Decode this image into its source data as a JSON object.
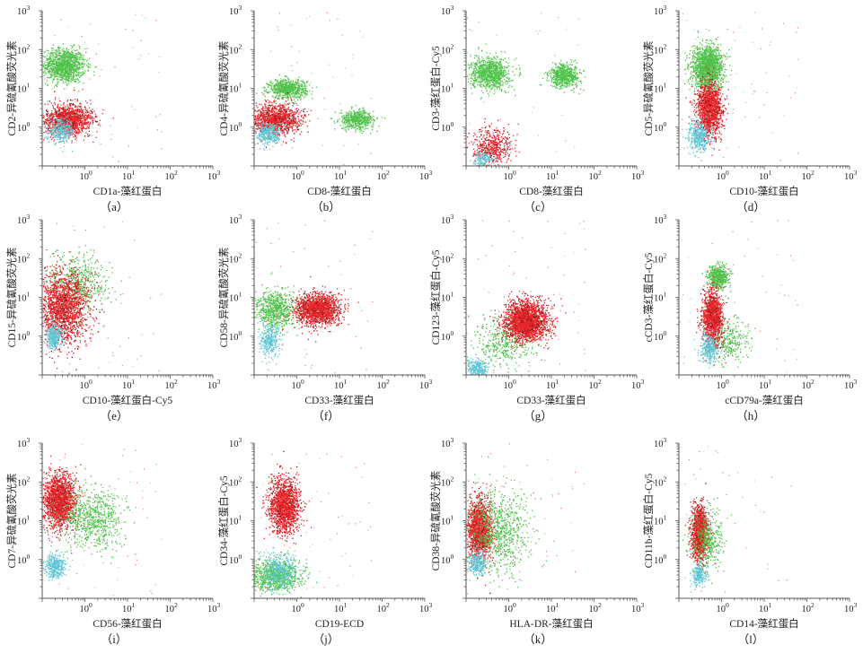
{
  "colors": {
    "green": "#4fc24a",
    "red": "#e8262b",
    "darkred": "#7a1410",
    "cyan": "#5ec6d6",
    "axis": "#555555"
  },
  "chart_data": [
    {
      "type": "scatter",
      "caption": "（a）",
      "xlabel": "CD1a-藻红蛋白",
      "ylabel": "CD2-异硫氰酸荧光素",
      "xscale": "log",
      "yscale": "log",
      "xlim": [
        0.1,
        1000
      ],
      "ylim": [
        0.1,
        1000
      ],
      "xticks": [
        "10^0",
        "10^1",
        "10^2",
        "10^3"
      ],
      "yticks": [
        "10^0",
        "10^1",
        "10^2",
        "10^3"
      ],
      "clusters": [
        {
          "color": "green",
          "cx": 0.32,
          "cy": 40,
          "sx": 0.25,
          "sy": 0.22,
          "n": 1200
        },
        {
          "color": "red",
          "cx": 0.4,
          "cy": 1.6,
          "sx": 0.28,
          "sy": 0.2,
          "n": 1300
        },
        {
          "color": "cyan",
          "cx": 0.28,
          "cy": 0.8,
          "sx": 0.15,
          "sy": 0.15,
          "n": 300
        }
      ]
    },
    {
      "type": "scatter",
      "caption": "（b）",
      "xlabel": "CD8-藻红蛋白",
      "ylabel": "CD4-异硫氰酸荧光素",
      "xscale": "log",
      "yscale": "log",
      "xlim": [
        0.1,
        1000
      ],
      "ylim": [
        0.1,
        1000
      ],
      "xticks": [
        "10^0",
        "10^1",
        "10^2",
        "10^3"
      ],
      "yticks": [
        "10^0",
        "10^1",
        "10^2",
        "10^3"
      ],
      "clusters": [
        {
          "color": "green",
          "cx": 0.6,
          "cy": 10,
          "sx": 0.22,
          "sy": 0.12,
          "n": 700
        },
        {
          "color": "green",
          "cx": 25,
          "cy": 1.6,
          "sx": 0.2,
          "sy": 0.12,
          "n": 500
        },
        {
          "color": "red",
          "cx": 0.3,
          "cy": 1.6,
          "sx": 0.3,
          "sy": 0.2,
          "n": 1200
        },
        {
          "color": "cyan",
          "cx": 0.22,
          "cy": 0.7,
          "sx": 0.15,
          "sy": 0.15,
          "n": 300
        }
      ]
    },
    {
      "type": "scatter",
      "caption": "（c）",
      "xlabel": "CD8-藻红蛋白",
      "ylabel": "CD3-藻红蛋白-Cy5",
      "xscale": "log",
      "yscale": "log",
      "xlim": [
        0.1,
        1000
      ],
      "ylim": [
        0.1,
        1000
      ],
      "xticks": [
        "10^0",
        "10^1",
        "10^2",
        "10^3"
      ],
      "yticks": [
        "10^0",
        "10^1",
        "10^2",
        "10^3"
      ],
      "clusters": [
        {
          "color": "green",
          "cx": 0.35,
          "cy": 25,
          "sx": 0.22,
          "sy": 0.2,
          "n": 900
        },
        {
          "color": "green",
          "cx": 20,
          "cy": 22,
          "sx": 0.18,
          "sy": 0.15,
          "n": 600
        },
        {
          "color": "red",
          "cx": 0.4,
          "cy": 0.3,
          "sx": 0.22,
          "sy": 0.25,
          "n": 500
        },
        {
          "color": "cyan",
          "cx": 0.25,
          "cy": 0.15,
          "sx": 0.12,
          "sy": 0.12,
          "n": 150
        }
      ]
    },
    {
      "type": "scatter",
      "caption": "（d）",
      "xlabel": "CD10-藻红蛋白",
      "ylabel": "CD5-异硫氰酸荧光素",
      "xscale": "log",
      "yscale": "log",
      "xlim": [
        0.1,
        1000
      ],
      "ylim": [
        0.1,
        1000
      ],
      "xticks": [
        "10^0",
        "10^1",
        "10^2",
        "10^3"
      ],
      "yticks": [
        "10^0",
        "10^1",
        "10^2",
        "10^3"
      ],
      "clusters": [
        {
          "color": "green",
          "cx": 0.45,
          "cy": 35,
          "sx": 0.18,
          "sy": 0.28,
          "n": 1500
        },
        {
          "color": "red",
          "cx": 0.5,
          "cy": 3,
          "sx": 0.15,
          "sy": 0.35,
          "n": 1400
        },
        {
          "color": "cyan",
          "cx": 0.3,
          "cy": 0.6,
          "sx": 0.13,
          "sy": 0.2,
          "n": 400
        }
      ]
    },
    {
      "type": "scatter",
      "caption": "（e）",
      "xlabel": "CD10-藻红蛋白-Cy5",
      "ylabel": "CD15-异硫氰酸荧光素",
      "xscale": "log",
      "yscale": "log",
      "xlim": [
        0.1,
        1000
      ],
      "ylim": [
        0.1,
        1000
      ],
      "xticks": [
        "10^0",
        "10^1",
        "10^2",
        "10^3"
      ],
      "yticks": [
        "10^0",
        "10^1",
        "10^2",
        "10^3"
      ],
      "clusters": [
        {
          "color": "green",
          "cx": 0.7,
          "cy": 25,
          "sx": 0.35,
          "sy": 0.35,
          "n": 500
        },
        {
          "color": "red",
          "cx": 0.3,
          "cy": 6,
          "sx": 0.3,
          "sy": 0.45,
          "n": 1800
        },
        {
          "color": "cyan",
          "cx": 0.18,
          "cy": 1.0,
          "sx": 0.1,
          "sy": 0.15,
          "n": 300
        }
      ]
    },
    {
      "type": "scatter",
      "caption": "（f）",
      "xlabel": "CD33-藻红蛋白",
      "ylabel": "CD58-异硫氰酸荧光素",
      "xscale": "log",
      "yscale": "log",
      "xlim": [
        0.1,
        1000
      ],
      "ylim": [
        0.1,
        1000
      ],
      "xticks": [
        "10^0",
        "10^1",
        "10^2",
        "10^3"
      ],
      "yticks": [
        "10^0",
        "10^1",
        "10^2",
        "10^3"
      ],
      "clusters": [
        {
          "color": "green",
          "cx": 0.3,
          "cy": 5,
          "sx": 0.25,
          "sy": 0.25,
          "n": 700
        },
        {
          "color": "red",
          "cx": 3,
          "cy": 5,
          "sx": 0.25,
          "sy": 0.2,
          "n": 1600
        },
        {
          "color": "cyan",
          "cx": 0.22,
          "cy": 0.8,
          "sx": 0.12,
          "sy": 0.2,
          "n": 300
        }
      ]
    },
    {
      "type": "scatter",
      "caption": "（g）",
      "xlabel": "CD33-藻红蛋白",
      "ylabel": "CD123-藻红蛋白-Cy5",
      "xscale": "log",
      "yscale": "log",
      "xlim": [
        0.1,
        1000
      ],
      "ylim": [
        0.1,
        1000
      ],
      "xticks": [
        "10^0",
        "10^1",
        "10^2",
        "10^3"
      ],
      "yticks": [
        "10^0",
        "10^1",
        "10^2",
        "10^3"
      ],
      "clusters": [
        {
          "color": "green",
          "cx": 0.7,
          "cy": 0.7,
          "sx": 0.35,
          "sy": 0.35,
          "n": 400
        },
        {
          "color": "red",
          "cx": 2.5,
          "cy": 2.5,
          "sx": 0.25,
          "sy": 0.25,
          "n": 2200
        },
        {
          "color": "cyan",
          "cx": 0.18,
          "cy": 0.15,
          "sx": 0.12,
          "sy": 0.1,
          "n": 250
        }
      ]
    },
    {
      "type": "scatter",
      "caption": "（h）",
      "xlabel": "cCD79a-藻红蛋白",
      "ylabel": "cCD3-藻红蛋白-Cy5",
      "xscale": "log",
      "yscale": "log",
      "xlim": [
        0.1,
        1000
      ],
      "ylim": [
        0.1,
        1000
      ],
      "xticks": [
        "10^0",
        "10^1",
        "10^2",
        "10^3"
      ],
      "yticks": [
        "10^0",
        "10^1",
        "10^2",
        "10^3"
      ],
      "clusters": [
        {
          "color": "green",
          "cx": 0.8,
          "cy": 35,
          "sx": 0.12,
          "sy": 0.15,
          "n": 500
        },
        {
          "color": "green",
          "cx": 1.5,
          "cy": 0.8,
          "sx": 0.25,
          "sy": 0.25,
          "n": 300
        },
        {
          "color": "red",
          "cx": 0.6,
          "cy": 3,
          "sx": 0.12,
          "sy": 0.35,
          "n": 1300
        },
        {
          "color": "cyan",
          "cx": 0.5,
          "cy": 0.5,
          "sx": 0.1,
          "sy": 0.2,
          "n": 300
        }
      ]
    },
    {
      "type": "scatter",
      "caption": "（i）",
      "xlabel": "CD56-藻红蛋白",
      "ylabel": "CD7-异硫氰酸荧光素",
      "xscale": "log",
      "yscale": "log",
      "xlim": [
        0.1,
        1000
      ],
      "ylim": [
        0.1,
        1000
      ],
      "xticks": [
        "10^0",
        "10^1",
        "10^2",
        "10^3"
      ],
      "yticks": [
        "10^0",
        "10^1",
        "10^2",
        "10^3"
      ],
      "clusters": [
        {
          "color": "red",
          "cx": 0.25,
          "cy": 35,
          "sx": 0.18,
          "sy": 0.35,
          "n": 1800
        },
        {
          "color": "green",
          "cx": 1.5,
          "cy": 12,
          "sx": 0.35,
          "sy": 0.4,
          "n": 700
        },
        {
          "color": "cyan",
          "cx": 0.2,
          "cy": 0.7,
          "sx": 0.12,
          "sy": 0.15,
          "n": 350
        }
      ]
    },
    {
      "type": "scatter",
      "caption": "（j）",
      "xlabel": "CD19-ECD",
      "ylabel": "CD34-藻红蛋白-Cy5",
      "xscale": "log",
      "yscale": "log",
      "xlim": [
        0.1,
        1000
      ],
      "ylim": [
        0.1,
        1000
      ],
      "xticks": [
        "10^0",
        "10^1",
        "10^2",
        "10^3"
      ],
      "yticks": [
        "10^0",
        "10^1",
        "10^2",
        "10^3"
      ],
      "clusters": [
        {
          "color": "red",
          "cx": 0.5,
          "cy": 25,
          "sx": 0.18,
          "sy": 0.35,
          "n": 1500
        },
        {
          "color": "green",
          "cx": 0.3,
          "cy": 0.4,
          "sx": 0.3,
          "sy": 0.2,
          "n": 900
        },
        {
          "color": "cyan",
          "cx": 0.4,
          "cy": 0.5,
          "sx": 0.2,
          "sy": 0.25,
          "n": 350
        }
      ]
    },
    {
      "type": "scatter",
      "caption": "（k）",
      "xlabel": "HLA-DR-藻红蛋白",
      "ylabel": "CD38-异硫氰酸荧光素",
      "xscale": "log",
      "yscale": "log",
      "xlim": [
        0.1,
        1000
      ],
      "ylim": [
        0.1,
        1000
      ],
      "xticks": [
        "10^0",
        "10^1",
        "10^2",
        "10^3"
      ],
      "yticks": [
        "10^0",
        "10^1",
        "10^2",
        "10^3"
      ],
      "clusters": [
        {
          "color": "red",
          "cx": 0.2,
          "cy": 6,
          "sx": 0.15,
          "sy": 0.4,
          "n": 1500
        },
        {
          "color": "green",
          "cx": 0.6,
          "cy": 5,
          "sx": 0.35,
          "sy": 0.5,
          "n": 800
        },
        {
          "color": "cyan",
          "cx": 0.18,
          "cy": 0.8,
          "sx": 0.1,
          "sy": 0.15,
          "n": 250
        }
      ]
    },
    {
      "type": "scatter",
      "caption": "（l）",
      "xlabel": "CD14-藻红蛋白",
      "ylabel": "CD11b-藻红蛋白-Cy5",
      "xscale": "log",
      "yscale": "log",
      "xlim": [
        0.1,
        1000
      ],
      "ylim": [
        0.1,
        1000
      ],
      "xticks": [
        "10^0",
        "10^1",
        "10^2",
        "10^3"
      ],
      "yticks": [
        "10^0",
        "10^1",
        "10^2",
        "10^3"
      ],
      "clusters": [
        {
          "color": "red",
          "cx": 0.3,
          "cy": 5,
          "sx": 0.1,
          "sy": 0.35,
          "n": 1300
        },
        {
          "color": "green",
          "cx": 0.45,
          "cy": 3,
          "sx": 0.18,
          "sy": 0.4,
          "n": 400
        },
        {
          "color": "cyan",
          "cx": 0.28,
          "cy": 0.4,
          "sx": 0.08,
          "sy": 0.15,
          "n": 200
        }
      ]
    }
  ]
}
